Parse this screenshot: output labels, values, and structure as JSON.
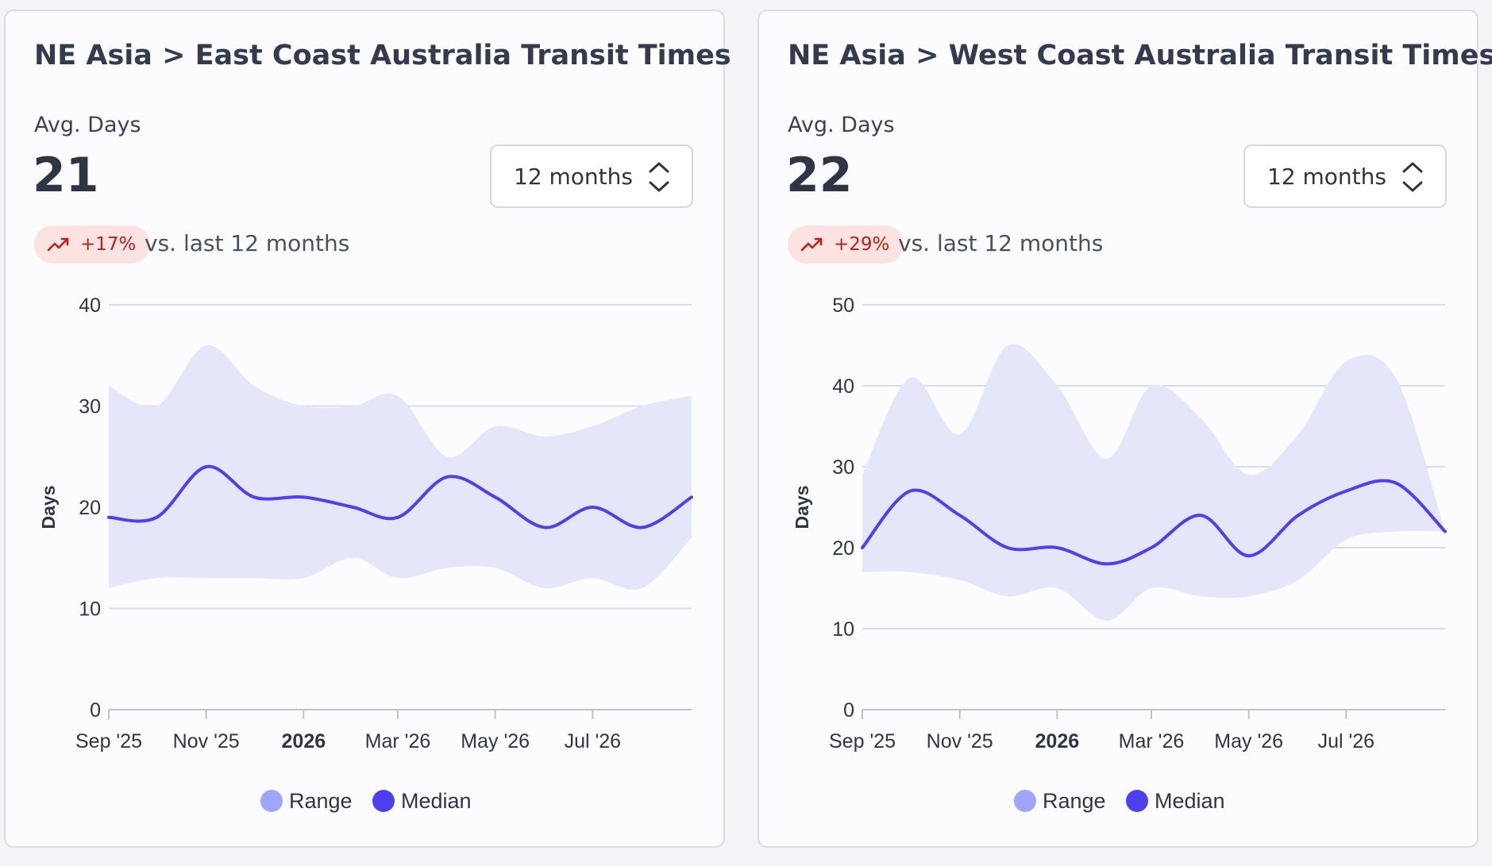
{
  "cards": [
    {
      "title": "NE Asia > East Coast Australia Transit Times",
      "kpi_label": "Avg. Days",
      "kpi_value": "21",
      "period_select": "12 months",
      "delta": "+17%",
      "delta_suffix": "vs. last 12 months",
      "colors": {
        "range": "#e6e6fb",
        "median": "#4e3ff0",
        "badge_bg": "#fde2e2",
        "badge_text": "#b42318"
      },
      "chart_data": {
        "type": "area",
        "title": "",
        "ylabel": "Days",
        "ylim": [
          0,
          40
        ],
        "yticks": [
          0,
          10,
          20,
          30,
          40
        ],
        "xlim": [
          "2025-09-01",
          "2026-09-01"
        ],
        "xticks": [
          {
            "value": "2025-09-01",
            "label": "Sep '25",
            "bold": false
          },
          {
            "value": "2025-11-01",
            "label": "Nov '25",
            "bold": false
          },
          {
            "value": "2026-01-01",
            "label": "2026",
            "bold": true
          },
          {
            "value": "2026-03-01",
            "label": "Mar '26",
            "bold": false
          },
          {
            "value": "2026-05-01",
            "label": "May '26",
            "bold": false
          },
          {
            "value": "2026-07-01",
            "label": "Jul '26",
            "bold": false
          }
        ],
        "grid": true,
        "legend": {
          "position": "bottom",
          "items": [
            {
              "label": "Range",
              "color": "#9ea6fb"
            },
            {
              "label": "Median",
              "color": "#4e3ff0"
            }
          ]
        },
        "x": [
          "2025-09-01",
          "2025-10-01",
          "2025-11-01",
          "2025-12-01",
          "2026-01-01",
          "2026-02-01",
          "2026-03-01",
          "2026-04-01",
          "2026-05-01",
          "2026-06-01",
          "2026-07-01",
          "2026-08-01",
          "2026-09-01"
        ],
        "series": [
          {
            "name": "Median",
            "values": [
              19,
              19,
              24,
              21,
              21,
              20,
              19,
              23,
              21,
              18,
              20,
              18,
              21
            ]
          },
          {
            "name": "Range",
            "low": [
              12,
              13,
              13,
              13,
              13,
              15,
              13,
              14,
              14,
              12,
              13,
              12,
              17
            ],
            "high": [
              32,
              30,
              36,
              32,
              30,
              30,
              31,
              25,
              28,
              27,
              28,
              30,
              31
            ]
          }
        ]
      }
    },
    {
      "title": "NE Asia > West Coast Australia Transit Times",
      "kpi_label": "Avg. Days",
      "kpi_value": "22",
      "period_select": "12 months",
      "delta": "+29%",
      "delta_suffix": "vs. last 12 months",
      "colors": {
        "range": "#e6e6fb",
        "median": "#4e3ff0",
        "badge_bg": "#fde2e2",
        "badge_text": "#b42318"
      },
      "chart_data": {
        "type": "area",
        "title": "",
        "ylabel": "Days",
        "ylim": [
          0,
          50
        ],
        "yticks": [
          0,
          10,
          20,
          30,
          40,
          50
        ],
        "xlim": [
          "2025-09-01",
          "2026-09-01"
        ],
        "xticks": [
          {
            "value": "2025-09-01",
            "label": "Sep '25",
            "bold": false
          },
          {
            "value": "2025-11-01",
            "label": "Nov '25",
            "bold": false
          },
          {
            "value": "2026-01-01",
            "label": "2026",
            "bold": true
          },
          {
            "value": "2026-03-01",
            "label": "Mar '26",
            "bold": false
          },
          {
            "value": "2026-05-01",
            "label": "May '26",
            "bold": false
          },
          {
            "value": "2026-07-01",
            "label": "Jul '26",
            "bold": false
          }
        ],
        "grid": true,
        "legend": {
          "position": "bottom",
          "items": [
            {
              "label": "Range",
              "color": "#9ea6fb"
            },
            {
              "label": "Median",
              "color": "#4e3ff0"
            }
          ]
        },
        "x": [
          "2025-09-01",
          "2025-10-01",
          "2025-11-01",
          "2025-12-01",
          "2026-01-01",
          "2026-02-01",
          "2026-03-01",
          "2026-04-01",
          "2026-05-01",
          "2026-06-01",
          "2026-07-01",
          "2026-08-01",
          "2026-09-01"
        ],
        "series": [
          {
            "name": "Median",
            "values": [
              20,
              27,
              24,
              20,
              20,
              18,
              20,
              24,
              19,
              24,
              27,
              28,
              22
            ]
          },
          {
            "name": "Range",
            "low": [
              17,
              17,
              16,
              14,
              15,
              11,
              15,
              14,
              14,
              16,
              21,
              22,
              22
            ],
            "high": [
              29,
              41,
              34,
              45,
              40,
              31,
              40,
              36,
              29,
              34,
              43,
              41,
              22
            ]
          }
        ]
      }
    }
  ]
}
